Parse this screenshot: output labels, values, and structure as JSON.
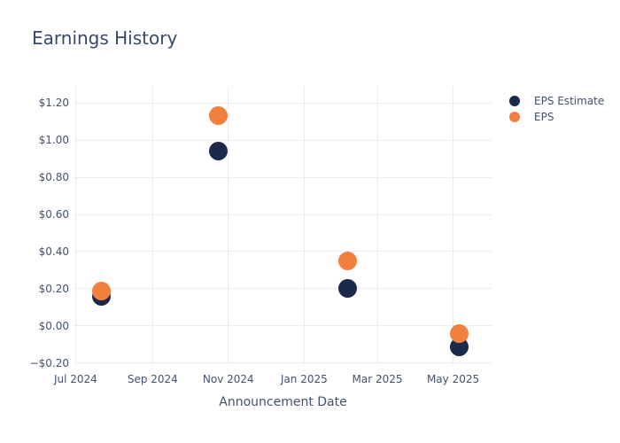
{
  "header": {
    "title": "Earnings History"
  },
  "colors": {
    "background": "#ffffff",
    "eps_estimate": "#1b2a4b",
    "eps": "#f1803e",
    "gridline": "#e8ecf4",
    "tick_text": "#42526e",
    "title_text": "#36486b"
  },
  "chart_data": {
    "type": "scatter",
    "title": "Earnings History",
    "xlabel": "Announcement Date",
    "ylabel": "",
    "grid": true,
    "legend_position": "right-top",
    "ylim": [
      -0.205,
      1.286
    ],
    "xlim_dates": [
      "2024-06-30",
      "2025-06-01"
    ],
    "y_ticks": [
      {
        "label": "$1.20",
        "value": 1.2
      },
      {
        "label": "$1.00",
        "value": 1.0
      },
      {
        "label": "$0.80",
        "value": 0.8
      },
      {
        "label": "$0.60",
        "value": 0.6
      },
      {
        "label": "$0.40",
        "value": 0.4
      },
      {
        "label": "$0.20",
        "value": 0.2
      },
      {
        "label": "$0.00",
        "value": 0.0
      },
      {
        "label": "−$0.20",
        "value": -0.2
      }
    ],
    "x_ticks": [
      {
        "label": "Jul 2024",
        "date": "2024-07-01"
      },
      {
        "label": "Sep 2024",
        "date": "2024-09-01"
      },
      {
        "label": "Nov 2024",
        "date": "2024-11-01"
      },
      {
        "label": "Jan 2025",
        "date": "2025-01-01"
      },
      {
        "label": "Mar 2025",
        "date": "2025-03-01"
      },
      {
        "label": "May 2025",
        "date": "2025-05-01"
      }
    ],
    "series": [
      {
        "name": "EPS Estimate",
        "color": "#1b2a4b",
        "points": [
          {
            "date": "2024-07-22",
            "value": 0.16
          },
          {
            "date": "2024-10-24",
            "value": 0.94
          },
          {
            "date": "2025-02-05",
            "value": 0.2
          },
          {
            "date": "2025-05-06",
            "value": -0.11
          }
        ]
      },
      {
        "name": "EPS",
        "color": "#f1803e",
        "points": [
          {
            "date": "2024-07-22",
            "value": 0.19
          },
          {
            "date": "2024-10-24",
            "value": 1.13
          },
          {
            "date": "2025-02-05",
            "value": 0.35
          },
          {
            "date": "2025-05-06",
            "value": -0.04
          }
        ]
      }
    ]
  }
}
